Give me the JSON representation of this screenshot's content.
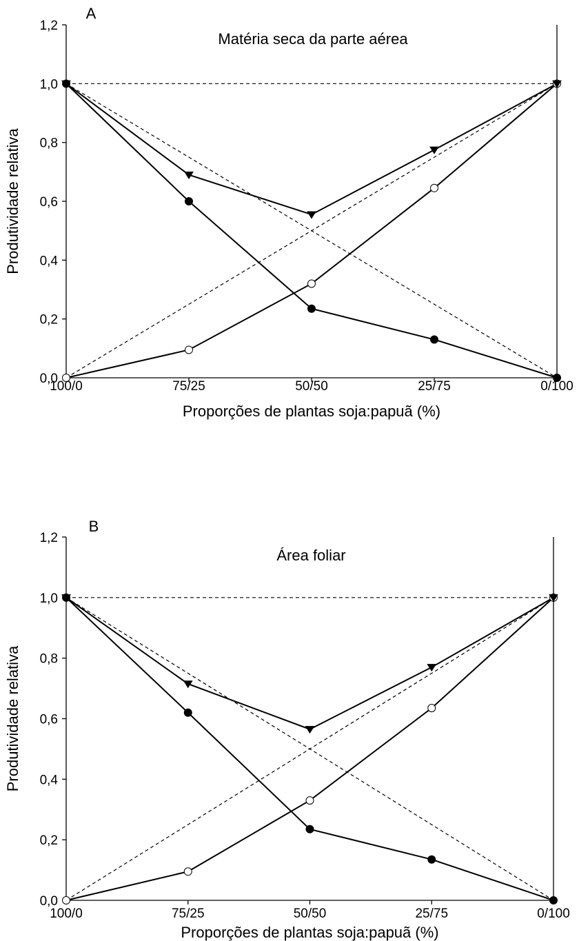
{
  "chart_data": [
    {
      "type": "line",
      "panel_label": "A",
      "title": "Matéria seca da parte aérea",
      "xlabel": "Proporções de plantas soja:papuã (%)",
      "ylabel": "Produtividade relativa",
      "categories": [
        "100/0",
        "75/25",
        "50/50",
        "25/75",
        "0/100"
      ],
      "ylim": [
        0,
        1.2
      ],
      "yticks": [
        "0,0",
        "0,2",
        "0,4",
        "0,6",
        "0,8",
        "1,0",
        "1,2"
      ],
      "series": [
        {
          "marker": "filled-circle",
          "line": "solid",
          "values": [
            1.0,
            0.6,
            0.235,
            0.13,
            0.0
          ]
        },
        {
          "marker": "open-circle",
          "line": "solid",
          "values": [
            0.0,
            0.095,
            0.32,
            0.645,
            1.0
          ]
        },
        {
          "marker": "filled-triangle-down",
          "line": "solid",
          "values": [
            1.0,
            0.69,
            0.555,
            0.775,
            1.0
          ]
        },
        {
          "marker": "none",
          "line": "dashed",
          "values": [
            1.0,
            0.75,
            0.5,
            0.25,
            0.0
          ]
        },
        {
          "marker": "none",
          "line": "dashed",
          "values": [
            0.0,
            0.25,
            0.5,
            0.75,
            1.0
          ]
        },
        {
          "marker": "none",
          "line": "dashed",
          "values": [
            1.0,
            1.0,
            1.0,
            1.0,
            1.0
          ]
        }
      ],
      "legend": "none",
      "grid": false
    },
    {
      "type": "line",
      "panel_label": "B",
      "title": "Área foliar",
      "xlabel": "Proporções de plantas soja:papuã (%)",
      "ylabel": "Produtividade relativa",
      "categories": [
        "100/0",
        "75/25",
        "50/50",
        "25/75",
        "0/100"
      ],
      "ylim": [
        0,
        1.2
      ],
      "yticks": [
        "0,0",
        "0,2",
        "0,4",
        "0,6",
        "0,8",
        "1,0",
        "1,2"
      ],
      "series": [
        {
          "marker": "filled-circle",
          "line": "solid",
          "values": [
            1.0,
            0.62,
            0.235,
            0.135,
            0.0
          ]
        },
        {
          "marker": "open-circle",
          "line": "solid",
          "values": [
            0.0,
            0.095,
            0.33,
            0.635,
            1.0
          ]
        },
        {
          "marker": "filled-triangle-down",
          "line": "solid",
          "values": [
            1.0,
            0.715,
            0.565,
            0.77,
            1.0
          ]
        },
        {
          "marker": "none",
          "line": "dashed",
          "values": [
            1.0,
            0.75,
            0.5,
            0.25,
            0.0
          ]
        },
        {
          "marker": "none",
          "line": "dashed",
          "values": [
            0.0,
            0.25,
            0.5,
            0.75,
            1.0
          ]
        },
        {
          "marker": "none",
          "line": "dashed",
          "values": [
            1.0,
            1.0,
            1.0,
            1.0,
            1.0
          ]
        }
      ],
      "legend": "none",
      "grid": false
    }
  ]
}
